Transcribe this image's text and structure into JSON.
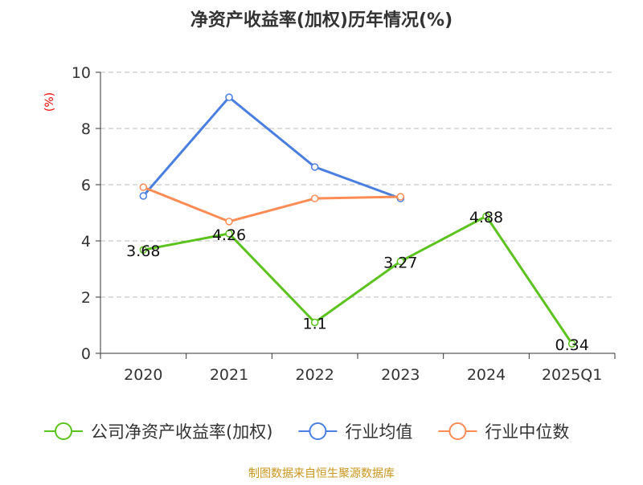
{
  "chart_data": {
    "type": "line",
    "title": "净资产收益率(加权)历年情况(%)",
    "ylabel": "(%)",
    "ylim": [
      0,
      10
    ],
    "yticks": [
      "0",
      "2",
      "4",
      "6",
      "8",
      "10"
    ],
    "categories": [
      "2020",
      "2021",
      "2022",
      "2023",
      "2024",
      "2025Q1"
    ],
    "grid": true,
    "legend_position": "bottom",
    "series": [
      {
        "name": "公司净资产收益率(加权)",
        "color": "#5cc21e",
        "values": [
          3.68,
          4.26,
          1.1,
          3.27,
          4.88,
          0.34
        ],
        "labels": [
          "3.68",
          "4.26",
          "1.1",
          "3.27",
          "4.88",
          "0.34"
        ]
      },
      {
        "name": "行业均值",
        "color": "#4a7fe0",
        "values": [
          5.6,
          9.11,
          6.63,
          5.51,
          null,
          null
        ]
      },
      {
        "name": "行业中位数",
        "color": "#ff8c55",
        "values": [
          5.91,
          4.69,
          5.51,
          5.57,
          null,
          null
        ]
      }
    ]
  },
  "source": "制图数据来自恒生聚源数据库"
}
